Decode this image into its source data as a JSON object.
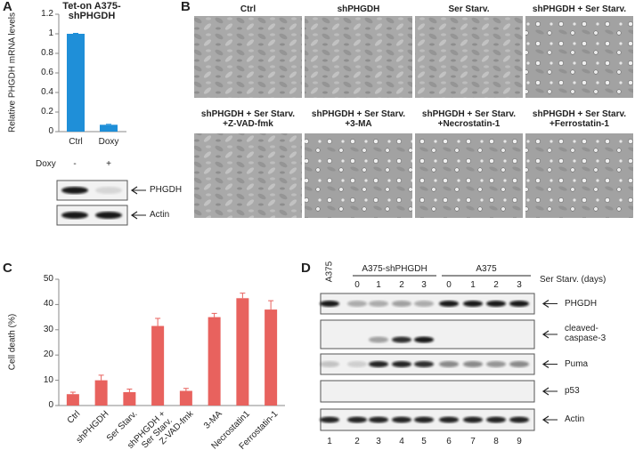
{
  "panel_labels": [
    "A",
    "B",
    "C",
    "D"
  ],
  "chart_data": [
    {
      "type": "bar",
      "title": "Tet-on A375-shPHGDH",
      "y_label": "Relative PHGDH mRNA levels",
      "categories": [
        "Ctrl",
        "Doxy"
      ],
      "values": [
        1.0,
        0.07
      ],
      "errors": [
        0.005,
        0.005
      ],
      "color": "#1f8fd8",
      "ylim": [
        0,
        1.2
      ],
      "yticks": [
        0,
        0.2,
        0.4,
        0.6,
        0.8,
        1,
        1.2
      ]
    },
    {
      "type": "bar",
      "y_label": "Cell death (%)",
      "categories": [
        "Ctrl",
        "shPHGDH",
        "Ser Starv.",
        "shPHGDH +\nSer Starv.",
        "Z-VAD-fmk",
        "3-MA",
        "Necrostatin1",
        "Ferrostatin-1"
      ],
      "values": [
        4.5,
        10,
        5.3,
        31.5,
        5.8,
        35,
        42.5,
        38
      ],
      "errors": [
        0.8,
        2,
        1.2,
        3,
        1,
        1.5,
        2,
        3.5
      ],
      "color": "#e8625e",
      "ylim": [
        0,
        50
      ],
      "yticks": [
        0,
        10,
        20,
        30,
        40,
        50
      ]
    }
  ],
  "blot_a": {
    "treatment": "Doxy",
    "lanes": [
      "-",
      "+"
    ],
    "proteins": [
      "PHGDH",
      "Actin"
    ]
  },
  "images_b": {
    "labels": [
      "Ctrl",
      "shPHGDH",
      "Ser Starv.",
      "shPHGDH + Ser Starv.",
      "shPHGDH + Ser Starv.\n+Z-VAD-fmk",
      "shPHGDH + Ser Starv.\n+3-MA",
      "shPHGDH + Ser Starv.\n+Necrostatin-1",
      "shPHGDH + Ser Starv.\n+Ferrostatin-1"
    ]
  },
  "blot_d": {
    "cell_line_first": "A375",
    "groups": [
      "A375-shPHGDH",
      "A375"
    ],
    "condition": "Ser Starv. (days)",
    "days": [
      0,
      1,
      2,
      3,
      0,
      1,
      2,
      3
    ],
    "proteins": [
      "PHGDH",
      "cleaved-\ncaspase-3",
      "Puma",
      "p53",
      "Actin"
    ],
    "lane_numbers": [
      1,
      2,
      3,
      4,
      5,
      6,
      7,
      8,
      9
    ]
  }
}
